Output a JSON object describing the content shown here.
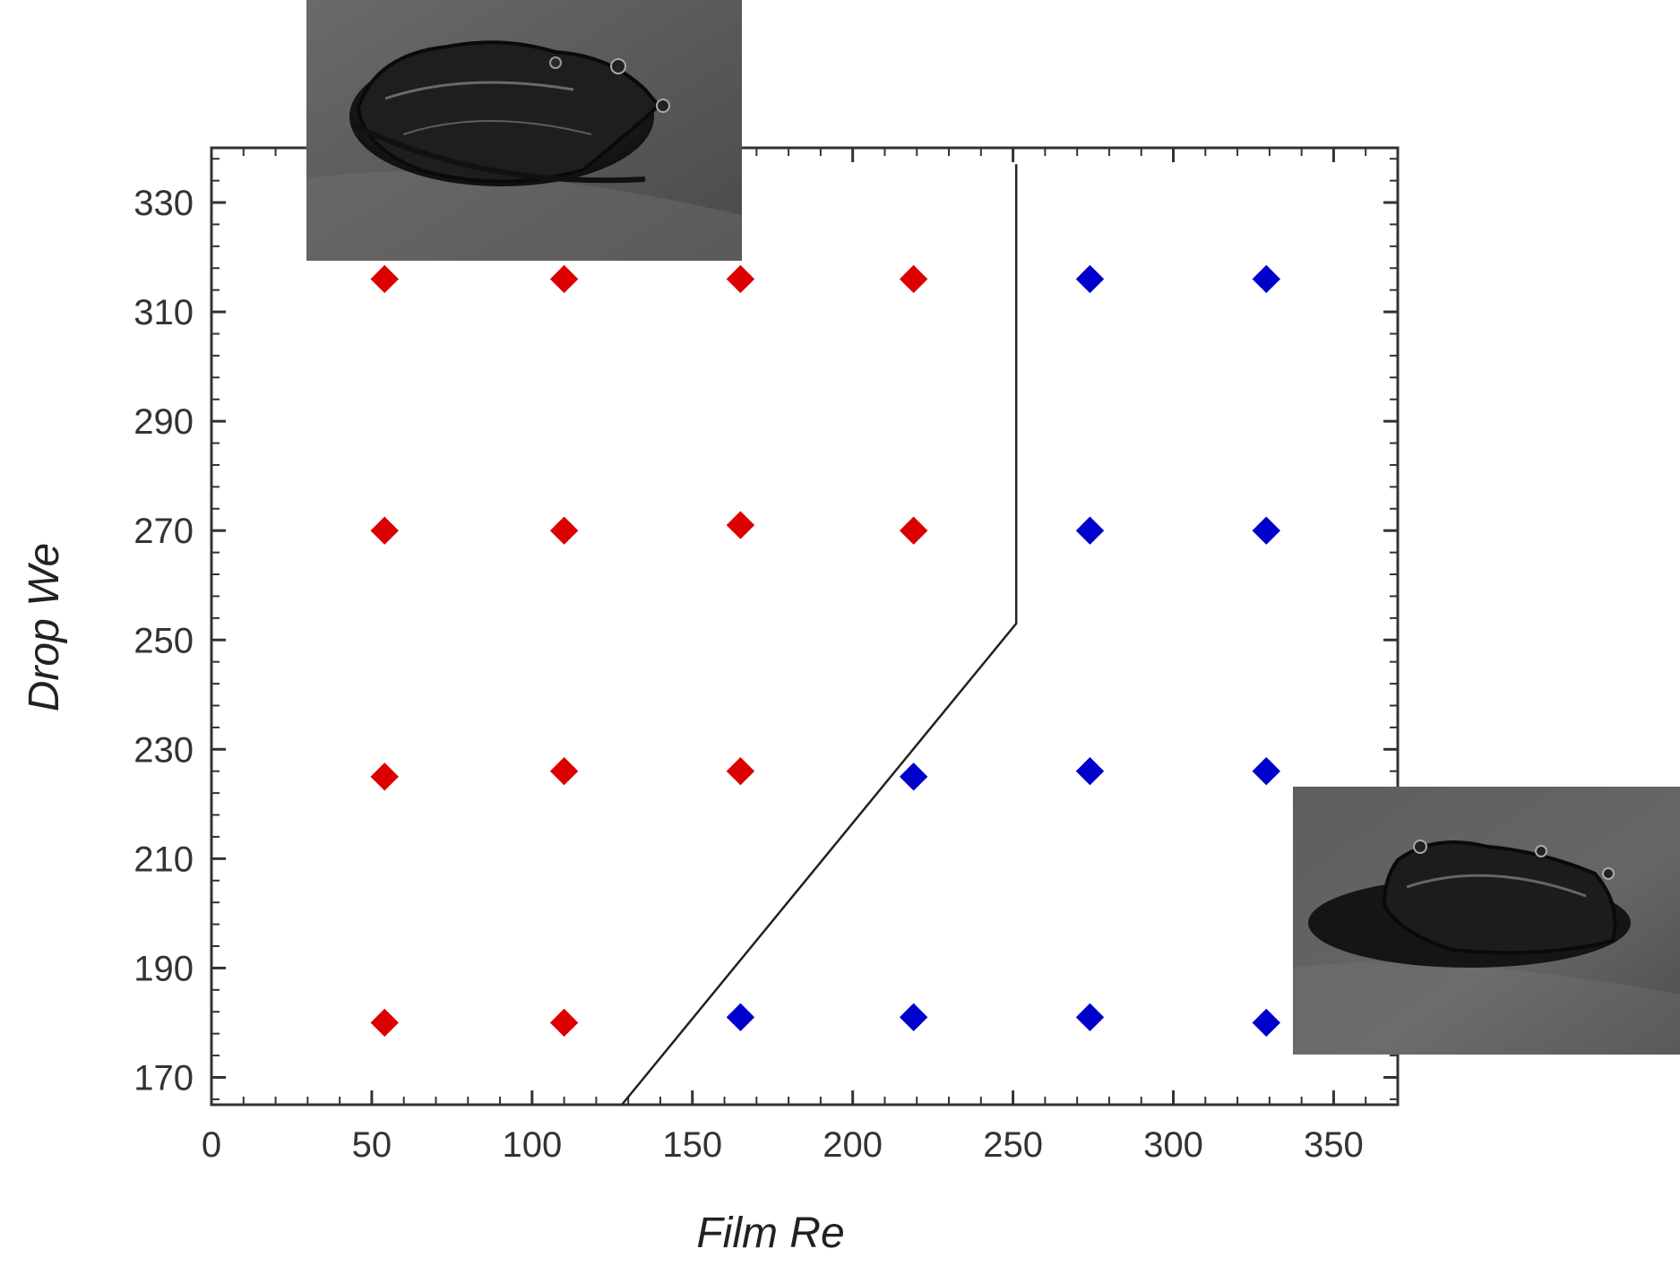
{
  "chart_data": {
    "type": "scatter",
    "title": "",
    "xlabel": "Film Re",
    "ylabel": "Drop We",
    "xlim": [
      0,
      370
    ],
    "ylim": [
      165,
      340
    ],
    "x_ticks": [
      0,
      50,
      100,
      150,
      200,
      250,
      300,
      350
    ],
    "y_ticks": [
      170,
      190,
      210,
      230,
      250,
      270,
      290,
      310,
      330
    ],
    "grid": false,
    "legend": "none",
    "series": [
      {
        "color": "#dd0000",
        "marker": "diamond",
        "points": [
          {
            "x": 54,
            "y": 316
          },
          {
            "x": 110,
            "y": 316
          },
          {
            "x": 165,
            "y": 316
          },
          {
            "x": 219,
            "y": 316
          },
          {
            "x": 54,
            "y": 270
          },
          {
            "x": 110,
            "y": 270
          },
          {
            "x": 165,
            "y": 271
          },
          {
            "x": 219,
            "y": 270
          },
          {
            "x": 54,
            "y": 225
          },
          {
            "x": 110,
            "y": 226
          },
          {
            "x": 165,
            "y": 226
          },
          {
            "x": 54,
            "y": 180
          },
          {
            "x": 110,
            "y": 180
          }
        ]
      },
      {
        "color": "#0000cc",
        "marker": "diamond",
        "points": [
          {
            "x": 274,
            "y": 316
          },
          {
            "x": 329,
            "y": 316
          },
          {
            "x": 274,
            "y": 270
          },
          {
            "x": 329,
            "y": 270
          },
          {
            "x": 219,
            "y": 225
          },
          {
            "x": 274,
            "y": 226
          },
          {
            "x": 329,
            "y": 226
          },
          {
            "x": 165,
            "y": 181
          },
          {
            "x": 219,
            "y": 181
          },
          {
            "x": 274,
            "y": 181
          },
          {
            "x": 329,
            "y": 180
          }
        ]
      }
    ],
    "boundary_line": {
      "color": "#222222",
      "points": [
        {
          "x": 128,
          "y": 165
        },
        {
          "x": 251,
          "y": 253
        },
        {
          "x": 251,
          "y": 337
        }
      ]
    },
    "insets": [
      {
        "name": "splash-photo-top",
        "description_icon": "droplet-splash-photo"
      },
      {
        "name": "splash-photo-bottom",
        "description_icon": "droplet-splash-photo"
      }
    ]
  }
}
